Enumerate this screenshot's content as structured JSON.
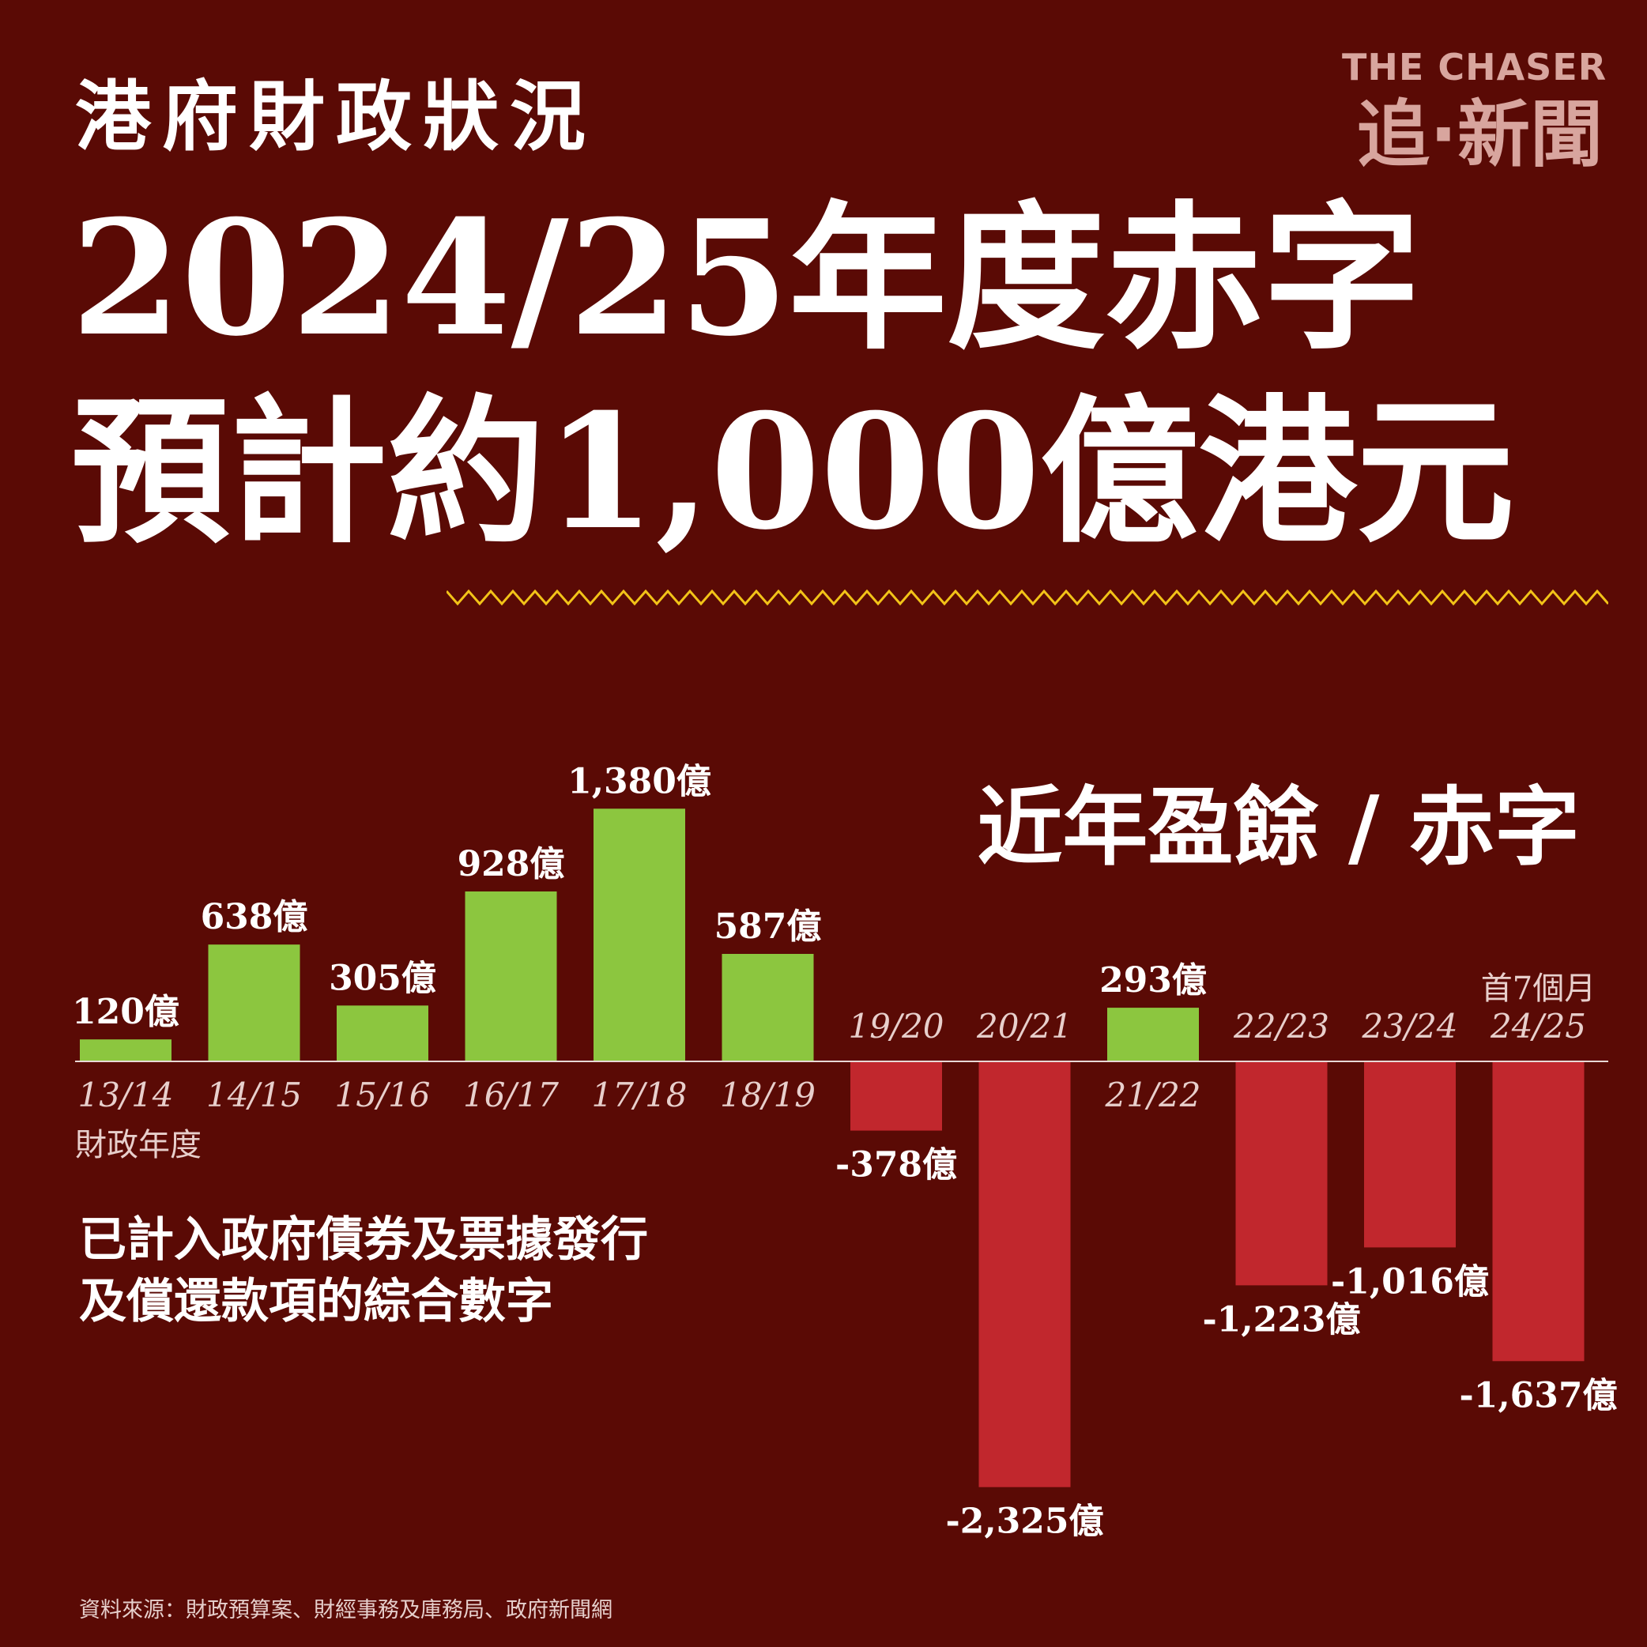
{
  "kicker": "港府財政狀況",
  "headline": {
    "line1": "2024/25年度赤字",
    "line2": "預計約1,000億港元"
  },
  "logo": {
    "line1": "THE CHASER",
    "line2": "追·新聞"
  },
  "note": {
    "line1": "已計入政府債券及票據發行",
    "line2": "及償還款項的綜合數字"
  },
  "source": "資料來源：財政預算案、財經事務及庫務局、政府新聞網",
  "colors": {
    "background": "#5a0a05",
    "surplus": "#8cc63f",
    "deficit": "#c1272d",
    "zigzag": "#f2c318"
  },
  "chart_data": {
    "type": "bar",
    "title": "近年盈餘 / 赤字",
    "xlabel": "財政年度",
    "unit": "億",
    "categories": [
      "13/14",
      "14/15",
      "15/16",
      "16/17",
      "17/18",
      "18/19",
      "19/20",
      "20/21",
      "21/22",
      "22/23",
      "23/24",
      "24/25"
    ],
    "values": [
      120,
      638,
      305,
      928,
      1380,
      587,
      -378,
      -2325,
      293,
      -1223,
      -1016,
      -1637
    ],
    "labels": [
      "120億",
      "638億",
      "305億",
      "928億",
      "1,380億",
      "587億",
      "-378億",
      "-2,325億",
      "293億",
      "-1,223億",
      "-1,016億",
      "-1,637億"
    ],
    "annotations": [
      {
        "category": "24/25",
        "text": "首7個月"
      }
    ],
    "grid": false,
    "legend": "none"
  }
}
